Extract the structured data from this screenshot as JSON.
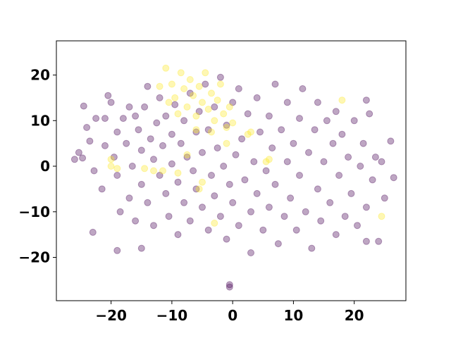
{
  "chart_data": {
    "type": "scatter",
    "title": "",
    "xlabel": "",
    "ylabel": "",
    "xlim": [
      -29,
      28.5
    ],
    "ylim": [
      -29.5,
      27.5
    ],
    "xticks": [
      -20,
      -10,
      0,
      10,
      20
    ],
    "yticks": [
      -20,
      -10,
      0,
      10,
      20
    ],
    "xtick_labels": [
      "−20",
      "−10",
      "0",
      "10",
      "20"
    ],
    "ytick_labels": [
      "−20",
      "−10",
      "0",
      "10",
      "20"
    ],
    "grid": false,
    "legend": false,
    "alpha": 0.35,
    "colors": {
      "purple": "#440154",
      "yellow": "#fde725"
    },
    "series": [
      {
        "color": "#440154",
        "points": [
          [
            -26,
            1.5
          ],
          [
            -25.3,
            3
          ],
          [
            -24.7,
            1.8
          ],
          [
            -24.5,
            13.2
          ],
          [
            -24,
            8.5
          ],
          [
            -23.5,
            5.5
          ],
          [
            -22.8,
            -1
          ],
          [
            -22.5,
            10.5
          ],
          [
            -21.5,
            -5
          ],
          [
            -21,
            10.5
          ],
          [
            -21,
            4.5
          ],
          [
            -20.5,
            15.5
          ],
          [
            -20,
            14
          ],
          [
            -19.5,
            2
          ],
          [
            -19,
            7.5
          ],
          [
            -19,
            -2
          ],
          [
            -18.5,
            -10
          ],
          [
            -18,
            10.5
          ],
          [
            -17.5,
            5
          ],
          [
            -17,
            13
          ],
          [
            -17,
            -7
          ],
          [
            -16.5,
            0
          ],
          [
            -16,
            11
          ],
          [
            -16,
            -12
          ],
          [
            -15.5,
            8
          ],
          [
            -15,
            3.5
          ],
          [
            -15,
            -4
          ],
          [
            -14.5,
            13
          ],
          [
            -14,
            -8
          ],
          [
            -14,
            17.5
          ],
          [
            -13.5,
            6
          ],
          [
            -13,
            1.5
          ],
          [
            -13,
            -13
          ],
          [
            -12.5,
            9.5
          ],
          [
            -12,
            -2
          ],
          [
            -12,
            15
          ],
          [
            -11.5,
            4.5
          ],
          [
            -11,
            -6
          ],
          [
            -11,
            11
          ],
          [
            -10.5,
            -11
          ],
          [
            -10,
            7
          ],
          [
            -10,
            0.5
          ],
          [
            -9.5,
            13.5
          ],
          [
            -9,
            -3.5
          ],
          [
            -9,
            -15
          ],
          [
            -8.5,
            5
          ],
          [
            -8,
            10
          ],
          [
            -8,
            -8
          ],
          [
            -7.5,
            2
          ],
          [
            -7,
            16
          ],
          [
            -7,
            -12
          ],
          [
            -6.5,
            -1
          ],
          [
            -6,
            7.5
          ],
          [
            -6,
            -5
          ],
          [
            -5.5,
            12
          ],
          [
            -5,
            -9
          ],
          [
            -5,
            3
          ],
          [
            -4.5,
            18
          ],
          [
            -4,
            -14
          ],
          [
            -4,
            8
          ],
          [
            -3.5,
            -2
          ],
          [
            -3,
            13
          ],
          [
            -3,
            -6.5
          ],
          [
            -2.5,
            4
          ],
          [
            -2,
            -11
          ],
          [
            -2,
            19.5
          ],
          [
            -1.5,
            0
          ],
          [
            -1,
            -16
          ],
          [
            -1,
            9
          ],
          [
            -0.5,
            -4
          ],
          [
            0,
            14
          ],
          [
            0,
            -8
          ],
          [
            0.5,
            2.5
          ],
          [
            1,
            -13
          ],
          [
            1,
            17
          ],
          [
            1.5,
            6
          ],
          [
            2,
            -3
          ],
          [
            2.5,
            11.5
          ],
          [
            3,
            -10
          ],
          [
            3,
            -19
          ],
          [
            3.5,
            1
          ],
          [
            4,
            15
          ],
          [
            4,
            -6
          ],
          [
            4.5,
            7.5
          ],
          [
            5,
            -14
          ],
          [
            5.5,
            -1
          ],
          [
            6,
            11
          ],
          [
            6,
            -9
          ],
          [
            6.5,
            4
          ],
          [
            7,
            18
          ],
          [
            7,
            -4
          ],
          [
            7.5,
            -17
          ],
          [
            8,
            8
          ],
          [
            8.5,
            -11
          ],
          [
            9,
            1
          ],
          [
            9,
            14
          ],
          [
            9.5,
            -7
          ],
          [
            10,
            5
          ],
          [
            10.5,
            -14
          ],
          [
            11,
            10.5
          ],
          [
            11,
            -2
          ],
          [
            11.5,
            17
          ],
          [
            12,
            -10
          ],
          [
            12.5,
            3
          ],
          [
            13,
            -18
          ],
          [
            13.5,
            8
          ],
          [
            14,
            -5
          ],
          [
            14,
            14
          ],
          [
            14.5,
            -12
          ],
          [
            15,
            1
          ],
          [
            15.5,
            10
          ],
          [
            16,
            -8
          ],
          [
            16.5,
            5
          ],
          [
            17,
            -15
          ],
          [
            17,
            12
          ],
          [
            17.5,
            -2
          ],
          [
            18,
            7
          ],
          [
            18.5,
            -11
          ],
          [
            19,
            2
          ],
          [
            19.5,
            -6
          ],
          [
            20,
            10
          ],
          [
            20.5,
            -13
          ],
          [
            21,
            0
          ],
          [
            21.5,
            5
          ],
          [
            22,
            -9
          ],
          [
            22.5,
            11.5
          ],
          [
            23,
            -3
          ],
          [
            23.5,
            2
          ],
          [
            24,
            -16.5
          ],
          [
            24.5,
            1
          ],
          [
            25,
            -7
          ],
          [
            26,
            5.5
          ],
          [
            26.5,
            -2.5
          ],
          [
            22,
            14.5
          ],
          [
            22,
            -16.5
          ],
          [
            -23,
            -14.5
          ],
          [
            -19,
            -18.5
          ],
          [
            -15,
            -18
          ],
          [
            -0.5,
            -26.5
          ],
          [
            -0.5,
            -26
          ]
        ]
      },
      {
        "color": "#fde725",
        "points": [
          [
            -11,
            21.5
          ],
          [
            -10,
            18
          ],
          [
            -9.5,
            15
          ],
          [
            -8.5,
            20.5
          ],
          [
            -8,
            17
          ],
          [
            -7.5,
            13
          ],
          [
            -7,
            19
          ],
          [
            -6.5,
            15.5
          ],
          [
            -6,
            11
          ],
          [
            -5.5,
            17.5
          ],
          [
            -5,
            14
          ],
          [
            -4.5,
            20.5
          ],
          [
            -4,
            12.5
          ],
          [
            -3.5,
            16
          ],
          [
            -3,
            10
          ],
          [
            -2.5,
            14.5
          ],
          [
            -2,
            18
          ],
          [
            -1.5,
            11.5
          ],
          [
            -1,
            8.5
          ],
          [
            -0.5,
            13
          ],
          [
            0,
            9.5
          ],
          [
            -12,
            17.5
          ],
          [
            -10.5,
            14
          ],
          [
            -9,
            11.5
          ],
          [
            -6,
            8
          ],
          [
            -3.5,
            7.5
          ],
          [
            -1,
            5
          ],
          [
            2.5,
            7
          ],
          [
            3,
            7.5
          ],
          [
            5.5,
            1
          ],
          [
            6,
            1.5
          ],
          [
            -20,
            0
          ],
          [
            -20,
            1.5
          ],
          [
            -19,
            -0.5
          ],
          [
            -13,
            -1
          ],
          [
            -9,
            -1.5
          ],
          [
            -11.5,
            -1
          ],
          [
            -5,
            -3.5
          ],
          [
            -5.5,
            -5
          ],
          [
            -3,
            -12.5
          ],
          [
            24.5,
            -11
          ],
          [
            18,
            14.5
          ],
          [
            -7.5,
            2.5
          ],
          [
            -14.5,
            -0.5
          ]
        ]
      }
    ]
  }
}
